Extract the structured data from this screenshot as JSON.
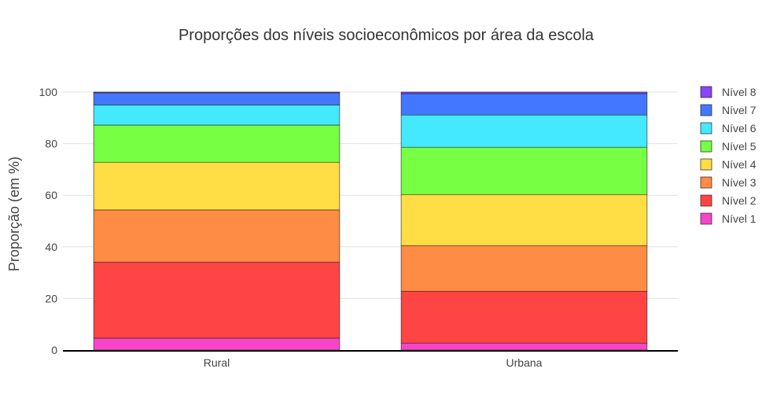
{
  "chart_data": {
    "type": "bar",
    "stacked": true,
    "title": "Proporções dos níveis socioeconômicos por área da escola",
    "xlabel": "",
    "ylabel": "Proporção (em %)",
    "ylim": [
      0,
      100
    ],
    "yticks": [
      0,
      20,
      40,
      60,
      80,
      100
    ],
    "grid": true,
    "legend_position": "right",
    "categories": [
      "Rural",
      "Urbana"
    ],
    "series": [
      {
        "name": "Nível 1",
        "color": "#f844c8",
        "values": [
          4.6,
          2.7
        ]
      },
      {
        "name": "Nível 2",
        "color": "#ff4444",
        "values": [
          29.5,
          20.1
        ]
      },
      {
        "name": "Nível 3",
        "color": "#ff8c44",
        "values": [
          20.2,
          17.7
        ]
      },
      {
        "name": "Nível 4",
        "color": "#ffdd44",
        "values": [
          18.5,
          19.8
        ]
      },
      {
        "name": "Nível 5",
        "color": "#77ff44",
        "values": [
          14.4,
          18.3
        ]
      },
      {
        "name": "Nível 6",
        "color": "#44e8ff",
        "values": [
          7.8,
          12.5
        ]
      },
      {
        "name": "Nível 7",
        "color": "#4477ff",
        "values": [
          4.7,
          8.3
        ]
      },
      {
        "name": "Nível 8",
        "color": "#8844ff",
        "values": [
          0.3,
          0.6
        ]
      }
    ]
  }
}
